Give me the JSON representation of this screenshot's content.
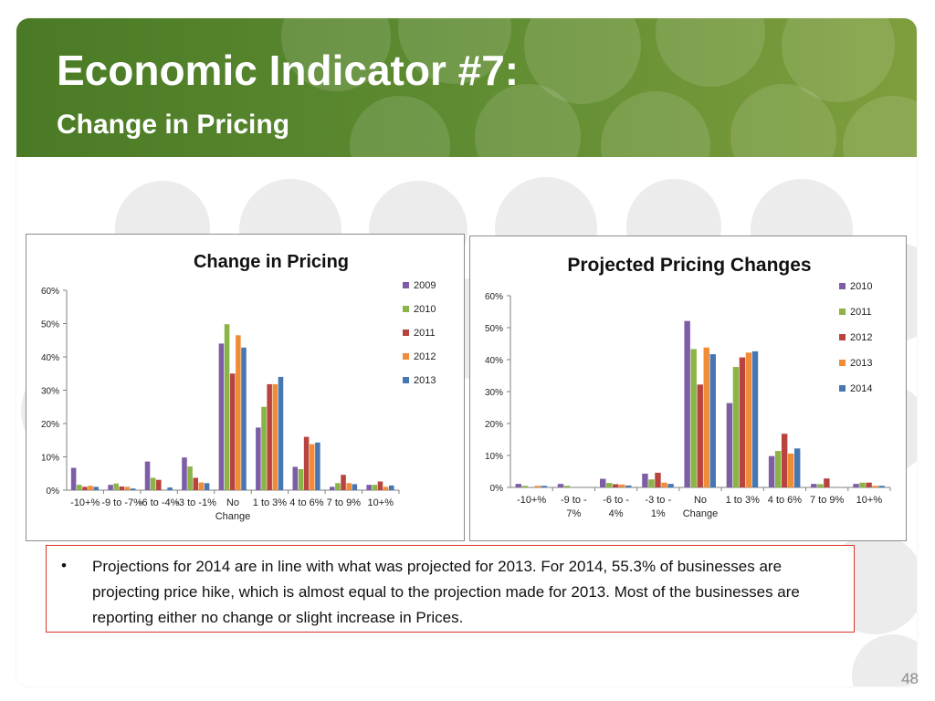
{
  "slide": {
    "title": "Economic Indicator #7:",
    "subtitle": "Change in Pricing",
    "bullet_marker": "•",
    "note": "Projections for 2014 are in line with what was projected for 2013. For 2014, 55.3% of businesses are projecting price hike, which is almost equal to the projection made for 2013. Most of the businesses are reporting either no change or slight increase in Prices.",
    "page_number": "48",
    "colors": {
      "header_green": "#5f8c32",
      "note_border": "#d9342b"
    }
  },
  "chart_data": [
    {
      "type": "bar",
      "title": "Change in Pricing",
      "categories": [
        "-10+%",
        "-9 to -7%",
        "-6 to -4%",
        "-3 to -1%",
        "No Change",
        "1 to 3%",
        "4 to 6%",
        "7 to 9%",
        "10+%"
      ],
      "ylim": [
        0,
        60
      ],
      "yticks": [
        0,
        10,
        20,
        30,
        40,
        50,
        60
      ],
      "ytick_suffix": "%",
      "legend_position": "top-right",
      "series": [
        {
          "name": "2009",
          "color": "#7c5da6",
          "values": [
            6.7,
            1.6,
            8.6,
            9.8,
            44.0,
            18.8,
            7.0,
            1.0,
            1.6
          ]
        },
        {
          "name": "2010",
          "color": "#8ab446",
          "values": [
            1.6,
            2.0,
            3.7,
            7.1,
            49.8,
            25.0,
            6.3,
            2.1,
            1.6
          ]
        },
        {
          "name": "2011",
          "color": "#b8433f",
          "values": [
            1.0,
            1.1,
            3.1,
            3.7,
            35.0,
            31.8,
            16.0,
            4.6,
            2.6
          ]
        },
        {
          "name": "2012",
          "color": "#ef8c38",
          "values": [
            1.3,
            1.0,
            0.0,
            2.3,
            46.5,
            31.8,
            13.8,
            2.1,
            1.0
          ]
        },
        {
          "name": "2013",
          "color": "#4677b3",
          "values": [
            1.0,
            0.5,
            0.8,
            2.1,
            42.8,
            34.0,
            14.3,
            1.8,
            1.4
          ]
        }
      ]
    },
    {
      "type": "bar",
      "title": "Projected Pricing Changes",
      "categories": [
        "-10+%",
        "-9 to - 7%",
        "-6 to - 4%",
        "-3 to - 1%",
        "No Change",
        "1 to 3%",
        "4 to 6%",
        "7 to 9%",
        "10+%"
      ],
      "ylim": [
        0,
        60
      ],
      "yticks": [
        0,
        10,
        20,
        30,
        40,
        50,
        60
      ],
      "ytick_suffix": "%",
      "legend_position": "top-right",
      "series": [
        {
          "name": "2010",
          "color": "#7c5da6",
          "values": [
            1.1,
            1.1,
            2.7,
            4.3,
            52.1,
            26.4,
            9.8,
            1.1,
            1.1
          ]
        },
        {
          "name": "2011",
          "color": "#8ab446",
          "values": [
            0.5,
            0.5,
            1.4,
            2.5,
            43.3,
            37.7,
            11.4,
            1.0,
            1.5
          ]
        },
        {
          "name": "2012",
          "color": "#b8433f",
          "values": [
            0.0,
            0.0,
            1.0,
            4.6,
            32.2,
            40.7,
            16.8,
            2.8,
            1.5
          ]
        },
        {
          "name": "2013",
          "color": "#ef8c38",
          "values": [
            0.5,
            0.0,
            0.9,
            1.5,
            43.8,
            42.2,
            10.6,
            0.0,
            0.5
          ]
        },
        {
          "name": "2014",
          "color": "#4677b3",
          "values": [
            0.5,
            0.0,
            0.6,
            1.1,
            41.7,
            42.6,
            12.2,
            0.0,
            0.5
          ]
        }
      ]
    }
  ]
}
